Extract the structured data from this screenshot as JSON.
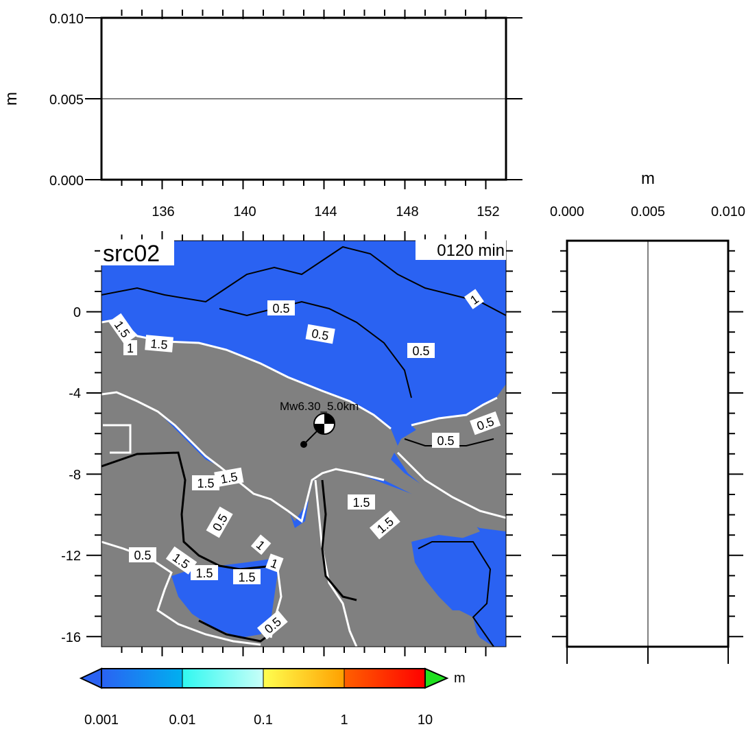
{
  "run": {
    "label": "src02",
    "time_label": "0120 min",
    "event_label": "Mw6.30_5.0km"
  },
  "top_panel": {
    "unit_label": "m",
    "y_ticks": [
      "0.000",
      "0.005",
      "0.010"
    ],
    "x_ticks": [
      "136",
      "140",
      "144",
      "148",
      "152"
    ]
  },
  "side_panel": {
    "unit_label": "m",
    "x_ticks": [
      "0.000",
      "0.005",
      "0.010"
    ]
  },
  "map": {
    "lat_ticks": [
      "0",
      "-4",
      "-8",
      "-12",
      "-16"
    ],
    "lon_range": [
      133,
      153
    ],
    "lat_range": [
      -16.5,
      3.5
    ],
    "contour_labels": [
      "0.5",
      "1",
      "1.5",
      "1.5",
      "0.5",
      "0.5",
      "1",
      "0.5",
      "1.5",
      "1.5",
      "1.5",
      "0.5",
      "1.5",
      "0.5",
      "1",
      "1.5",
      "1.5",
      "1.5",
      "1",
      "0.5",
      "0.5"
    ],
    "colors": {
      "ocean": "#2a62f2",
      "land": "#808080",
      "contour_white": "#ffffff",
      "contour_black": "#000000"
    }
  },
  "colorbar": {
    "unit_label": "m",
    "tick_labels": [
      "0.001",
      "0.01",
      "0.1",
      "1",
      "10"
    ],
    "colors": [
      "#2a62f2",
      "#00b0f0",
      "#30f8f0",
      "#b8fff8",
      "#ffff50",
      "#ffb000",
      "#ff5000",
      "#ff0000",
      "#20e020"
    ]
  }
}
